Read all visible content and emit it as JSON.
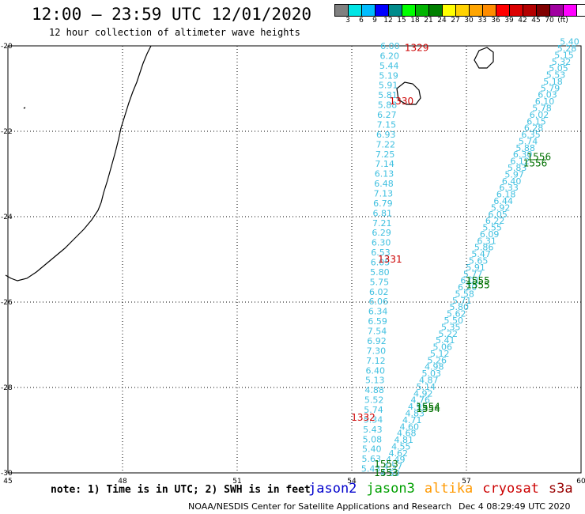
{
  "header": {
    "title": "12:00 — 23:59 UTC 12/01/2020",
    "subtitle": "12 hour collection of altimeter wave heights"
  },
  "colorbar": {
    "colors": [
      "#808080",
      "#00e5e5",
      "#00bcff",
      "#0000ff",
      "#008b8b",
      "#00ff00",
      "#00b400",
      "#008000",
      "#ffff00",
      "#ffd200",
      "#ffa500",
      "#ff8c00",
      "#ff0000",
      "#dc0000",
      "#b40000",
      "#800000",
      "#a000a0",
      "#ff00ff",
      "#ffffff",
      "#000000"
    ],
    "labels": [
      "3",
      "6",
      "9",
      "12",
      "15",
      "18",
      "21",
      "24",
      "27",
      "30",
      "33",
      "36",
      "39",
      "42",
      "45",
      "70",
      "(ft)"
    ]
  },
  "axes": {
    "lon_ticks": [
      "45",
      "48",
      "51",
      "54",
      "57",
      "60"
    ],
    "lat_ticks": [
      "-20",
      "-22",
      "-24",
      "-26",
      "-28",
      "-30"
    ]
  },
  "track1": {
    "color": "#40c0e0",
    "values": [
      "6.00",
      "6.20",
      "5.44",
      "5.19",
      "5.91",
      "5.81",
      "5.88",
      "6.27",
      "7.15",
      "6.93",
      "7.22",
      "7.25",
      "7.14",
      "6.13",
      "6.48",
      "7.13",
      "6.79",
      "6.81",
      "7.21",
      "6.29",
      "6.30",
      "6.53",
      "6.05",
      "5.80",
      "5.75",
      "6.02",
      "6.06",
      "6.34",
      "6.59",
      "7.54",
      "6.92",
      "7.30",
      "7.12",
      "6.40",
      "5.13",
      "4.88",
      "5.52",
      "5.74",
      "5.34",
      "5.43",
      "5.08",
      "5.40",
      "5.63",
      "5.43"
    ],
    "lat_start": -20.0,
    "lat_end": -29.9,
    "lon_start": 55.0,
    "lon_end": 54.5
  },
  "track2": {
    "color": "#40c0e0",
    "values": [
      "5.40",
      "5.28",
      "5.15",
      "5.32",
      "5.05",
      "5.53",
      "5.18",
      "5.79",
      "6.03",
      "6.10",
      "5.78",
      "6.02",
      "6.15",
      "6.28",
      "6.35",
      "5.74",
      "5.88",
      "6.30",
      "6.12",
      "5.83",
      "5.97",
      "6.40",
      "6.33",
      "6.18",
      "6.44",
      "5.92",
      "6.05",
      "6.22",
      "5.55",
      "6.09",
      "6.31",
      "5.86",
      "5.47",
      "5.65",
      "5.91",
      "5.77",
      "6.01",
      "6.20",
      "5.58",
      "5.71",
      "5.80",
      "5.62",
      "5.50",
      "5.35",
      "5.22",
      "5.41",
      "5.06",
      "5.12",
      "5.26",
      "4.98",
      "5.03",
      "4.87",
      "5.14",
      "4.92",
      "4.76",
      "4.95",
      "4.83",
      "4.71",
      "4.60",
      "4.68",
      "4.81",
      "4.55",
      "4.62",
      "4.49",
      "4.57",
      "4.50"
    ],
    "lat_start": -19.9,
    "lat_end": -30.0,
    "lon_start": 59.7,
    "lon_end": 55.0
  },
  "labels": [
    {
      "text": "1329",
      "lon": 55.7,
      "lat": -20.05,
      "color": "#cc0000"
    },
    {
      "text": "1330",
      "lon": 55.3,
      "lat": -21.3,
      "color": "#cc0000"
    },
    {
      "text": "1331",
      "lon": 55.0,
      "lat": -25.0,
      "color": "#cc0000"
    },
    {
      "text": "1332",
      "lon": 54.3,
      "lat": -28.7,
      "color": "#cc0000"
    },
    {
      "text": "1556",
      "lon": 58.9,
      "lat": -22.6,
      "color": "#007000"
    },
    {
      "text": "1556",
      "lon": 58.8,
      "lat": -22.75,
      "color": "#007000"
    },
    {
      "text": "1555",
      "lon": 57.3,
      "lat": -25.5,
      "color": "#007000"
    },
    {
      "text": "1555",
      "lon": 57.3,
      "lat": -25.6,
      "color": "#007000"
    },
    {
      "text": "1554",
      "lon": 56.0,
      "lat": -28.45,
      "color": "#007000"
    },
    {
      "text": "1554",
      "lon": 56.0,
      "lat": -28.5,
      "color": "#007000"
    },
    {
      "text": "1553",
      "lon": 54.9,
      "lat": -29.8,
      "color": "#007000"
    },
    {
      "text": "1553",
      "lon": 54.9,
      "lat": -30.0,
      "color": "#007000"
    }
  ],
  "note": "note: 1) Time is in UTC; 2) SWH is in feet",
  "legend": [
    {
      "name": "jason2",
      "color": "#0000cc"
    },
    {
      "name": "jason3",
      "color": "#00a000"
    },
    {
      "name": "altika",
      "color": "#ff9900"
    },
    {
      "name": "cryosat",
      "color": "#cc0000"
    },
    {
      "name": "s3a",
      "color": "#990000"
    }
  ],
  "footer": {
    "left": "NOAA/NESDIS Center for Satellite Applications and Research",
    "right": "Dec  4 08:29:49 UTC 2020"
  }
}
